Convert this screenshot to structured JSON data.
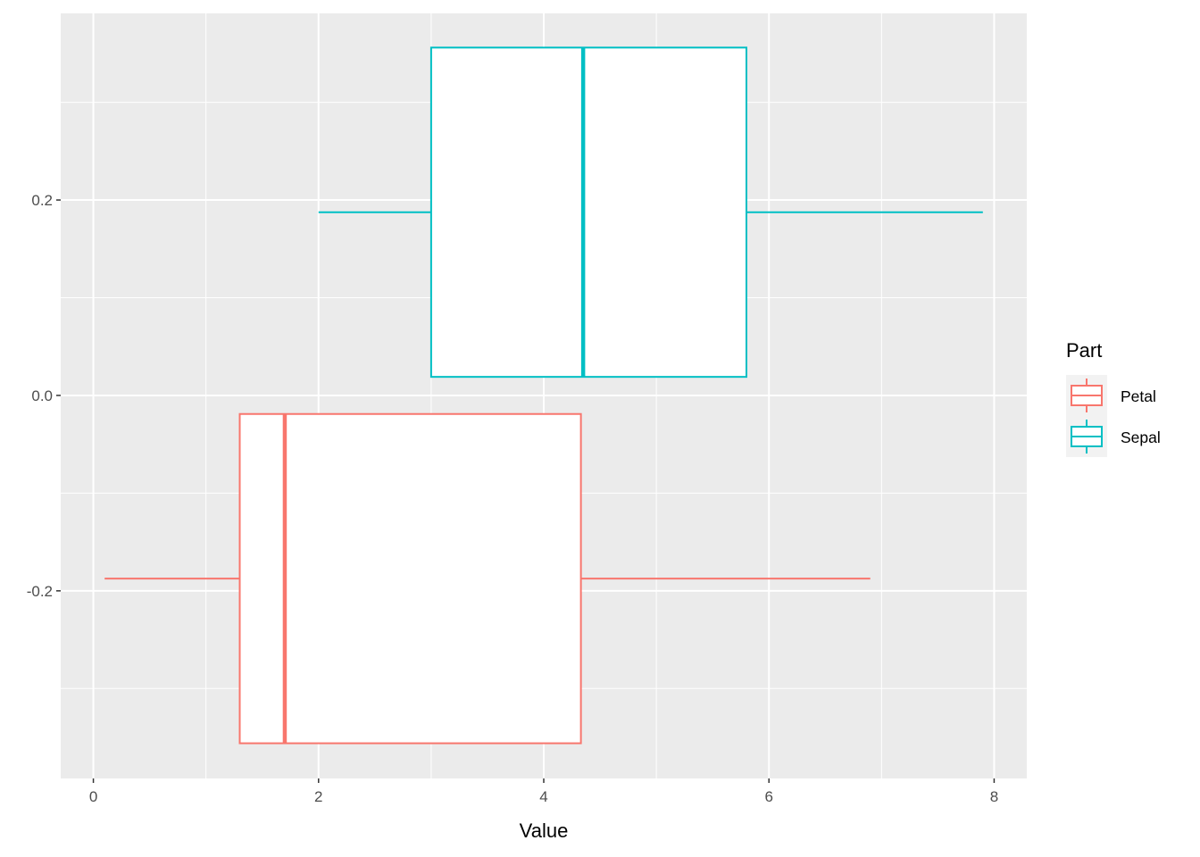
{
  "chart_data": {
    "type": "boxplot",
    "title": "",
    "xlabel": "Value",
    "ylabel": "",
    "xlim": [
      -0.29,
      8.29
    ],
    "ylim": [
      -0.392,
      0.391
    ],
    "x_ticks": [
      "0",
      "2",
      "4",
      "6",
      "8"
    ],
    "x_tick_values": [
      0,
      2,
      4,
      6,
      8
    ],
    "y_ticks": [
      "-0.2",
      "0.0",
      "0.2"
    ],
    "y_tick_values": [
      -0.2,
      0.0,
      0.2
    ],
    "grid": true,
    "legend": {
      "title": "Part",
      "position": "right",
      "entries": [
        "Petal",
        "Sepal"
      ]
    },
    "series": [
      {
        "name": "Petal",
        "color": "#F8766D",
        "min": 0.1,
        "q1": 1.3,
        "median": 1.7,
        "q3": 4.33,
        "max": 6.9,
        "y_center": -0.1875,
        "y_bottom": -0.356,
        "y_top": -0.019
      },
      {
        "name": "Sepal",
        "color": "#00BFC4",
        "min": 2.0,
        "q1": 3.0,
        "median": 4.35,
        "q3": 5.8,
        "max": 7.9,
        "y_center": 0.1875,
        "y_bottom": 0.019,
        "y_top": 0.356
      }
    ]
  }
}
